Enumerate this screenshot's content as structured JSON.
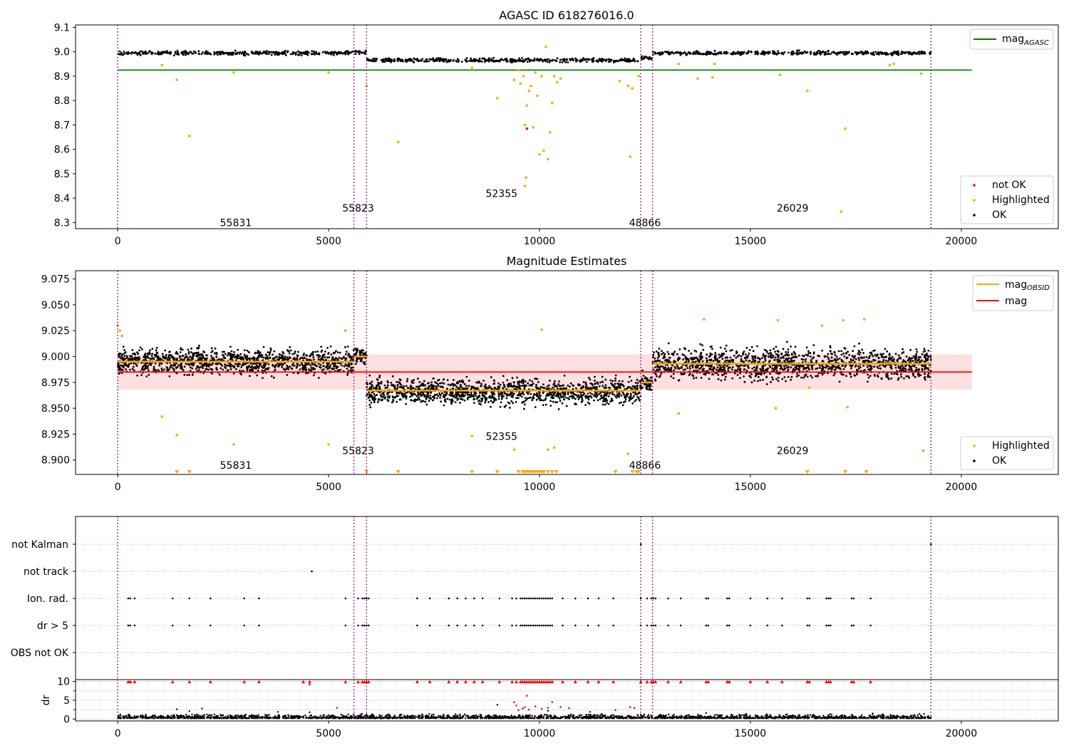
{
  "chart_data": [
    {
      "type": "scatter",
      "title": "AGASC ID 618276016.0",
      "xlim": [
        -1000,
        22300
      ],
      "ylim": [
        8.275,
        9.11
      ],
      "xticks": [
        0,
        5000,
        10000,
        15000,
        20000
      ],
      "yticks": [
        8.3,
        8.4,
        8.5,
        8.6,
        8.7,
        8.8,
        8.9,
        9.0,
        9.1
      ],
      "obsid_boundaries": [
        0,
        5600,
        5900,
        12400,
        12680,
        19280
      ],
      "obsid_labels": [
        {
          "text": "55831",
          "x": 2800,
          "y": 8.3
        },
        {
          "text": "55823",
          "x": 5700,
          "y": 8.36
        },
        {
          "text": "52355",
          "x": 9100,
          "y": 8.42
        },
        {
          "text": "48866",
          "x": 12500,
          "y": 8.3
        },
        {
          "text": "26029",
          "x": 16000,
          "y": 8.36
        }
      ],
      "mag_agasc": {
        "value": 8.925,
        "x": [
          0,
          20250
        ]
      },
      "series": [
        {
          "name": "not OK",
          "color": "#ff0000",
          "points": [
            [
              9700,
              8.685
            ]
          ]
        },
        {
          "name": "Highlighted",
          "color": "#ffa500",
          "points": [
            [
              1400,
              8.885
            ],
            [
              1700,
              8.655
            ],
            [
              2750,
              8.915
            ],
            [
              1050,
              8.945
            ],
            [
              5000,
              8.915
            ],
            [
              5900,
              8.86
            ],
            [
              6650,
              8.63
            ],
            [
              8400,
              8.935
            ],
            [
              9000,
              8.81
            ],
            [
              9400,
              8.885
            ],
            [
              9500,
              8.925
            ],
            [
              9550,
              8.87
            ],
            [
              9620,
              8.9
            ],
            [
              9650,
              8.45
            ],
            [
              9680,
              8.485
            ],
            [
              9650,
              8.7
            ],
            [
              9700,
              8.78
            ],
            [
              9750,
              8.84
            ],
            [
              9800,
              8.86
            ],
            [
              9850,
              8.69
            ],
            [
              9900,
              8.915
            ],
            [
              9950,
              8.82
            ],
            [
              10000,
              8.58
            ],
            [
              10050,
              8.9
            ],
            [
              10100,
              8.595
            ],
            [
              10150,
              9.02
            ],
            [
              10200,
              8.56
            ],
            [
              10250,
              8.67
            ],
            [
              10300,
              8.79
            ],
            [
              10350,
              8.9
            ],
            [
              10420,
              8.875
            ],
            [
              10500,
              8.89
            ],
            [
              11900,
              8.88
            ],
            [
              12100,
              8.86
            ],
            [
              12150,
              8.57
            ],
            [
              12200,
              8.85
            ],
            [
              12350,
              8.9
            ],
            [
              13300,
              8.95
            ],
            [
              13750,
              8.89
            ],
            [
              14100,
              8.895
            ],
            [
              14150,
              8.95
            ],
            [
              15700,
              8.905
            ],
            [
              16350,
              8.84
            ],
            [
              17150,
              8.345
            ],
            [
              17250,
              8.685
            ],
            [
              18300,
              8.945
            ],
            [
              18400,
              8.95
            ],
            [
              19050,
              8.91
            ]
          ]
        },
        {
          "name": "OK",
          "color": "#000000",
          "bands": [
            {
              "x0": 0,
              "x1": 5600,
              "center": 8.995
            },
            {
              "x0": 5600,
              "x1": 5900,
              "center": 9.0
            },
            {
              "x0": 5900,
              "x1": 12400,
              "center": 8.965
            },
            {
              "x0": 12400,
              "x1": 12680,
              "center": 8.975
            },
            {
              "x0": 12680,
              "x1": 19280,
              "center": 8.995
            }
          ]
        }
      ],
      "legends": [
        [
          "mag_AGASC"
        ],
        [
          "not OK",
          "Highlighted",
          "OK"
        ]
      ]
    },
    {
      "type": "scatter",
      "title": "Magnitude Estimates",
      "xlim": [
        -1000,
        22300
      ],
      "ylim": [
        8.886,
        9.083
      ],
      "xticks": [
        0,
        5000,
        10000,
        15000,
        20000
      ],
      "yticks": [
        8.9,
        8.925,
        8.95,
        8.975,
        9.0,
        9.025,
        9.05,
        9.075
      ],
      "ytick_labels": [
        "8.900",
        "8.925",
        "8.950",
        "8.975",
        "9.000",
        "9.025",
        "9.050",
        "9.075"
      ],
      "obsid_boundaries": [
        0,
        5600,
        5900,
        12400,
        12680,
        19280
      ],
      "obsid_labels": [
        {
          "text": "55831",
          "x": 2800,
          "y": 8.895
        },
        {
          "text": "55823",
          "x": 5700,
          "y": 8.909
        },
        {
          "text": "52355",
          "x": 9100,
          "y": 8.923
        },
        {
          "text": "48866",
          "x": 12500,
          "y": 8.895
        },
        {
          "text": "26029",
          "x": 16000,
          "y": 8.909
        }
      ],
      "mag": {
        "value": 8.985,
        "band": [
          8.968,
          9.002
        ],
        "x": [
          0,
          20250
        ]
      },
      "mag_obsid": [
        {
          "x0": 0,
          "x1": 5600,
          "value": 8.995
        },
        {
          "x0": 5600,
          "x1": 5900,
          "value": 9.0
        },
        {
          "x0": 5900,
          "x1": 12400,
          "value": 8.967
        },
        {
          "x0": 12400,
          "x1": 12680,
          "value": 8.975
        },
        {
          "x0": 12680,
          "x1": 19280,
          "value": 8.993
        }
      ],
      "series": [
        {
          "name": "Highlighted",
          "color": "#ffa500",
          "points": [
            [
              0,
              9.03
            ],
            [
              50,
              9.025
            ],
            [
              100,
              9.02
            ],
            [
              1050,
              8.942
            ],
            [
              1400,
              8.924
            ],
            [
              2750,
              8.915
            ],
            [
              5000,
              8.915
            ],
            [
              5400,
              9.025
            ],
            [
              9400,
              8.91
            ],
            [
              10200,
              8.91
            ],
            [
              10350,
              8.912
            ],
            [
              10050,
              9.026
            ],
            [
              8400,
              8.923
            ],
            [
              12100,
              8.906
            ],
            [
              13300,
              8.945
            ],
            [
              13900,
              9.036
            ],
            [
              15650,
              9.035
            ],
            [
              16700,
              9.03
            ],
            [
              17200,
              9.035
            ],
            [
              17700,
              9.036
            ],
            [
              17300,
              8.951
            ],
            [
              19100,
              8.909
            ],
            [
              15600,
              8.95
            ],
            [
              16400,
              8.97
            ]
          ]
        },
        {
          "name": "OK",
          "color": "#000000",
          "bands": [
            {
              "x0": 0,
              "x1": 5600,
              "center": 8.995,
              "half": 0.018
            },
            {
              "x0": 5600,
              "x1": 5900,
              "center": 9.0,
              "half": 0.012
            },
            {
              "x0": 5900,
              "x1": 12400,
              "center": 8.966,
              "half": 0.018
            },
            {
              "x0": 12400,
              "x1": 12680,
              "center": 8.975,
              "half": 0.012
            },
            {
              "x0": 12680,
              "x1": 19280,
              "center": 8.993,
              "half": 0.022
            }
          ]
        }
      ],
      "offscale_markers_x": [
        1400,
        1700,
        5900,
        6650,
        8400,
        9000,
        9500,
        9600,
        9650,
        9700,
        9750,
        9800,
        9850,
        9900,
        9950,
        10000,
        10050,
        10100,
        10200,
        10300,
        10400,
        11800,
        12200,
        12300,
        12350,
        16350,
        17250,
        17750
      ],
      "legends": [
        [
          "mag_OBSID",
          "mag"
        ],
        [
          "Highlighted",
          "OK"
        ]
      ]
    },
    {
      "type": "scatter",
      "categories": [
        "not Kalman",
        "not track",
        "Ion. rad.",
        "dr > 5",
        "OBS not OK"
      ],
      "xlim": [
        -1000,
        22300
      ],
      "obsid_boundaries": [
        0,
        5600,
        5900,
        12400,
        12680,
        19280
      ],
      "flag_events_x": [
        250,
        300,
        400,
        1300,
        1700,
        2200,
        3000,
        3350,
        5400,
        5700,
        5800,
        5850,
        5900,
        5950,
        7100,
        7400,
        7850,
        8050,
        8250,
        8450,
        8650,
        9050,
        9350,
        9450,
        9550,
        9600,
        9650,
        9700,
        9750,
        9800,
        9850,
        9900,
        9950,
        10000,
        10050,
        10100,
        10150,
        10200,
        10250,
        10300,
        10550,
        10850,
        11150,
        11400,
        11750,
        12400,
        12550,
        12650,
        12700,
        12750,
        13050,
        13350,
        13950,
        14000,
        14450,
        14500,
        15000,
        15400,
        15750,
        16350,
        16400,
        16800,
        16850,
        16900,
        17400,
        17450,
        17850
      ],
      "not_track_x": [
        4600
      ],
      "not_kalman_x": [
        12400,
        19280
      ]
    },
    {
      "type": "scatter",
      "ylabel": "dr",
      "xlim": [
        -1000,
        22300
      ],
      "ylim": [
        -0.5,
        10.5
      ],
      "xticks": [
        0,
        5000,
        10000,
        15000,
        20000
      ],
      "yticks": [
        0,
        5,
        10
      ],
      "obsid_boundaries": [
        0,
        5600,
        5900,
        12400,
        12680,
        19280
      ],
      "clipped_dr_x": [
        250,
        300,
        400,
        1300,
        1700,
        2200,
        3000,
        3350,
        4400,
        4550,
        5400,
        5700,
        5800,
        5850,
        5900,
        5950,
        7100,
        7400,
        7850,
        8050,
        8250,
        8450,
        8650,
        9050,
        9350,
        9450,
        9550,
        9600,
        9650,
        9700,
        9750,
        9800,
        9850,
        9900,
        9950,
        10000,
        10050,
        10100,
        10150,
        10200,
        10250,
        10300,
        10550,
        10850,
        11150,
        11400,
        11750,
        12400,
        12550,
        12650,
        12700,
        12750,
        13050,
        13350,
        13950,
        14000,
        14450,
        14500,
        15000,
        15400,
        15750,
        16350,
        16400,
        16800,
        16850,
        16900,
        17400,
        17450,
        17850
      ],
      "red_points": [
        [
          4550,
          9.2
        ],
        [
          5200,
          3.0
        ],
        [
          9400,
          4.5
        ],
        [
          9450,
          3.6
        ],
        [
          9500,
          2.4
        ],
        [
          9600,
          2.8
        ],
        [
          9650,
          3.2
        ],
        [
          9700,
          6.2
        ],
        [
          9750,
          2.5
        ],
        [
          9900,
          3.4
        ],
        [
          10050,
          2.7
        ],
        [
          10200,
          3.0
        ],
        [
          10300,
          4.5
        ],
        [
          10500,
          3.2
        ],
        [
          10700,
          2.9
        ],
        [
          11800,
          2.4
        ],
        [
          12150,
          3.2
        ],
        [
          12250,
          2.9
        ]
      ],
      "black_outliers": [
        [
          1400,
          2.6
        ],
        [
          1700,
          2.1
        ],
        [
          2000,
          2.8
        ],
        [
          3800,
          1.9
        ],
        [
          4550,
          1.8
        ],
        [
          9000,
          3.8
        ],
        [
          10200,
          2.2
        ],
        [
          11200,
          1.9
        ],
        [
          13950,
          1.6
        ],
        [
          17900,
          1.5
        ]
      ]
    }
  ],
  "legend_labels": {
    "mag_agasc": "mag",
    "mag_agasc_sub": "AGASC",
    "mag_obsid": "mag",
    "mag_obsid_sub": "OBSID",
    "mag": "mag",
    "not_ok": "not OK",
    "highlighted": "Highlighted",
    "ok": "OK"
  }
}
